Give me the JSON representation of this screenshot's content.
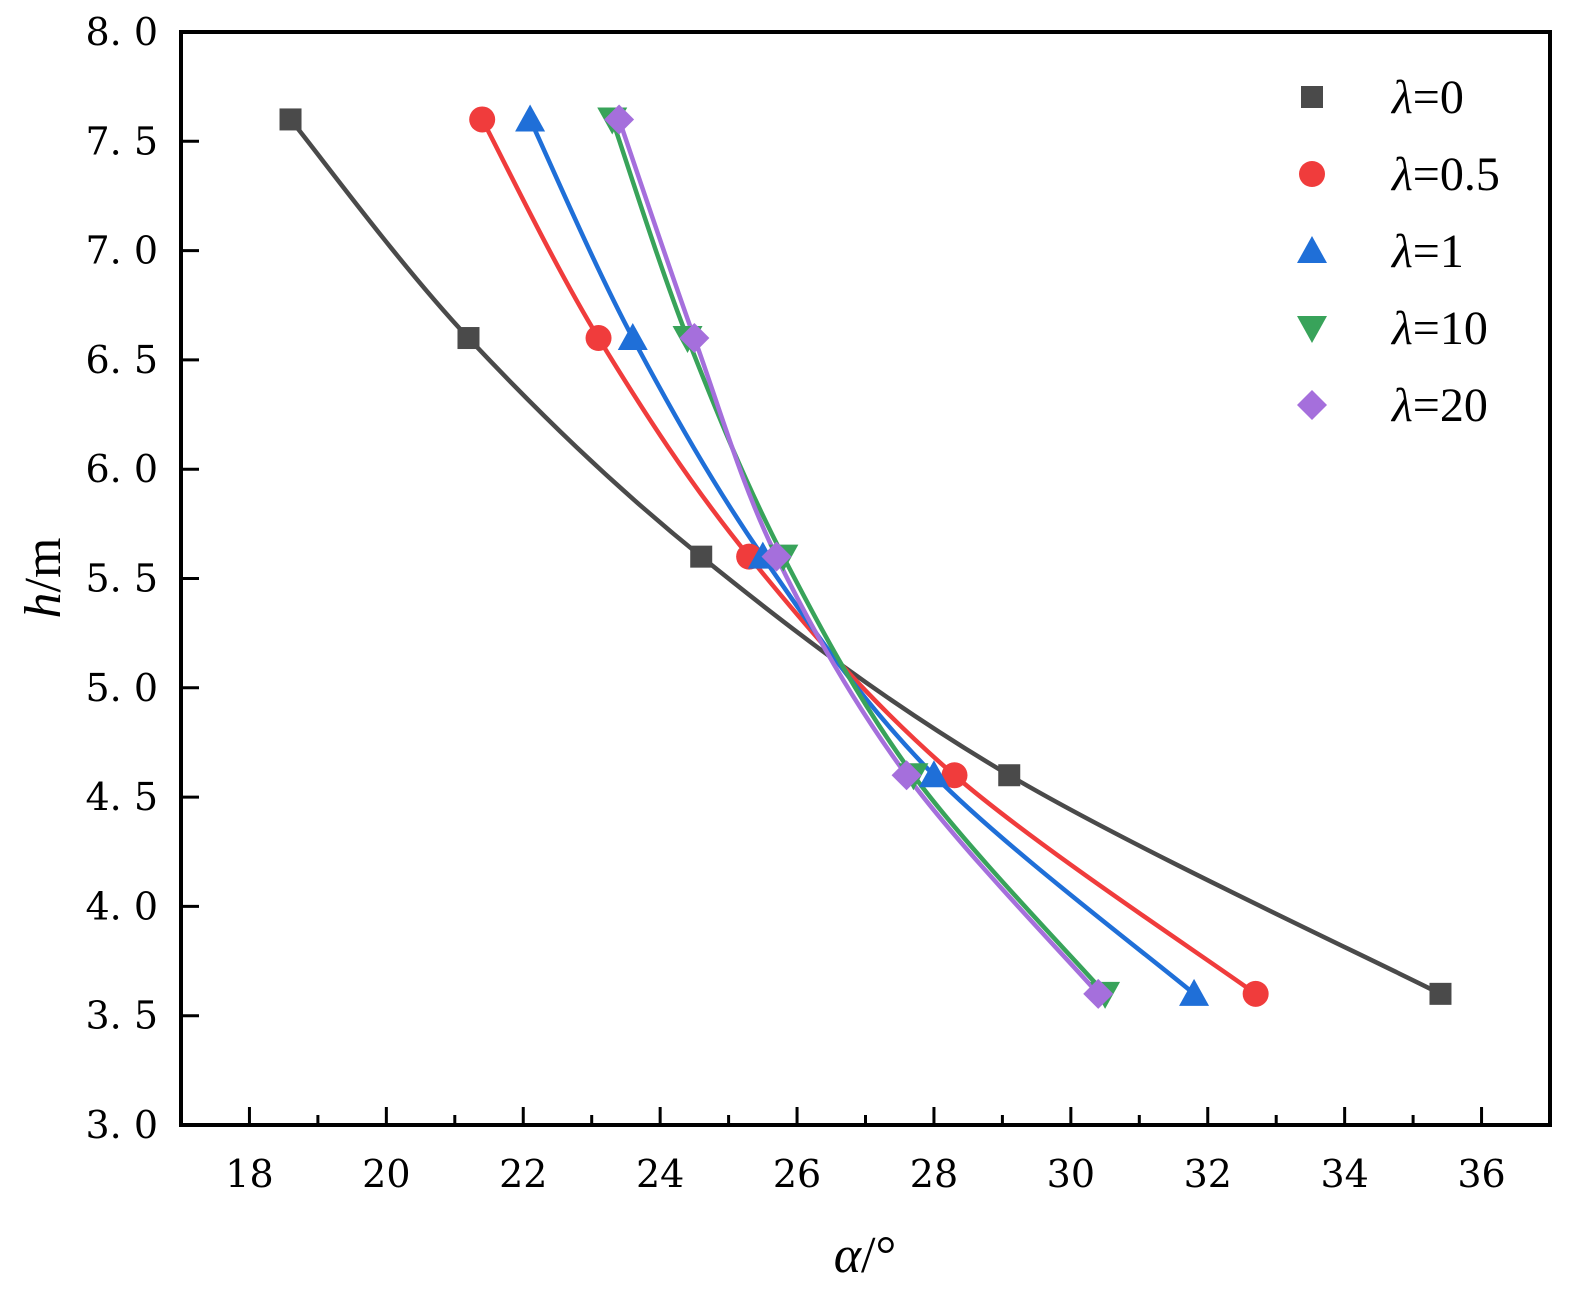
{
  "chart_data": {
    "type": "line",
    "title": "",
    "xlabel": {
      "symbol": "α",
      "unit": "/°"
    },
    "ylabel": {
      "symbol": "h",
      "unit": "/m"
    },
    "xlim": [
      17,
      37
    ],
    "ylim": [
      3.0,
      8.0
    ],
    "xticks": [
      18,
      20,
      22,
      24,
      26,
      28,
      30,
      32,
      34,
      36
    ],
    "yticks": [
      3.0,
      3.5,
      4.0,
      4.5,
      5.0,
      5.5,
      6.0,
      6.5,
      7.0,
      7.5,
      8.0
    ],
    "ytick_labels": [
      "3. 0",
      "3. 5",
      "4. 0",
      "4. 5",
      "5. 0",
      "5. 5",
      "6. 0",
      "6. 5",
      "7. 0",
      "7. 5",
      "8. 0"
    ],
    "grid": false,
    "legend_position": "top-right",
    "series": [
      {
        "name": "λ=0",
        "label_symbol": "λ",
        "label_value": "=0",
        "color": "#4a4a4a",
        "marker": "square",
        "points": [
          [
            18.6,
            7.6
          ],
          [
            21.2,
            6.6
          ],
          [
            24.6,
            5.6
          ],
          [
            29.1,
            4.6
          ],
          [
            35.4,
            3.6
          ]
        ]
      },
      {
        "name": "λ=0.5",
        "label_symbol": "λ",
        "label_value": "=0.5",
        "color": "#f03c3c",
        "marker": "circle",
        "points": [
          [
            21.4,
            7.6
          ],
          [
            23.1,
            6.6
          ],
          [
            25.3,
            5.6
          ],
          [
            28.3,
            4.6
          ],
          [
            32.7,
            3.6
          ]
        ]
      },
      {
        "name": "λ=1",
        "label_symbol": "λ",
        "label_value": "=1",
        "color": "#1f6fd8",
        "marker": "triangle-up",
        "points": [
          [
            22.1,
            7.6
          ],
          [
            23.6,
            6.6
          ],
          [
            25.5,
            5.6
          ],
          [
            28.0,
            4.6
          ],
          [
            31.8,
            3.6
          ]
        ]
      },
      {
        "name": "λ=10",
        "label_symbol": "λ",
        "label_value": "=10",
        "color": "#38a35a",
        "marker": "triangle-down",
        "points": [
          [
            23.3,
            7.6
          ],
          [
            24.4,
            6.6
          ],
          [
            25.8,
            5.6
          ],
          [
            27.7,
            4.6
          ],
          [
            30.5,
            3.6
          ]
        ]
      },
      {
        "name": "λ=20",
        "label_symbol": "λ",
        "label_value": "=20",
        "color": "#a56fdc",
        "marker": "diamond",
        "points": [
          [
            23.4,
            7.6
          ],
          [
            24.5,
            6.6
          ],
          [
            25.7,
            5.6
          ],
          [
            27.6,
            4.6
          ],
          [
            30.4,
            3.6
          ]
        ]
      }
    ]
  }
}
